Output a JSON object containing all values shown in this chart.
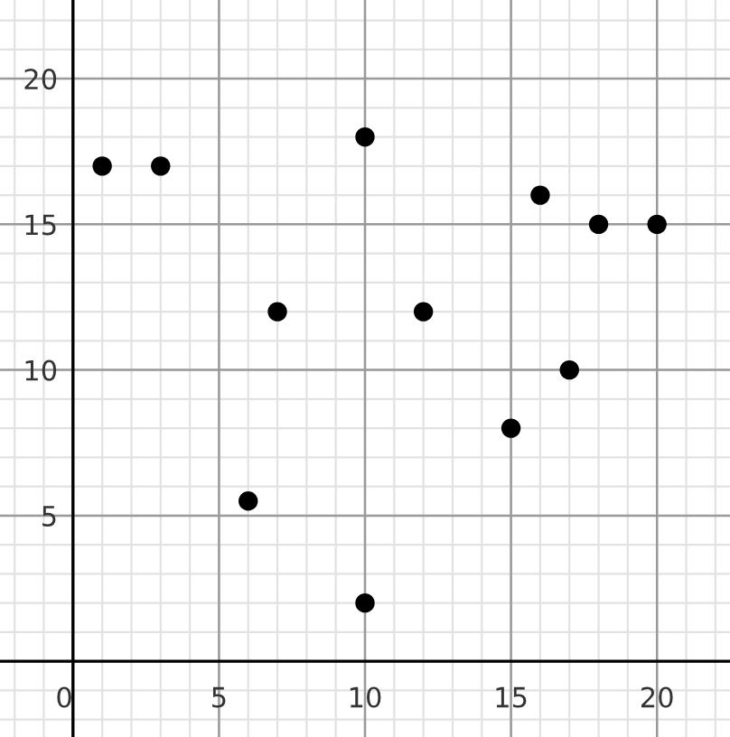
{
  "chart_data": {
    "type": "scatter",
    "x": [
      1,
      3,
      6,
      7,
      10,
      10,
      12,
      15,
      16,
      17,
      18,
      20
    ],
    "values": [
      17,
      17,
      5.5,
      12,
      18,
      2,
      12,
      8,
      16,
      10,
      15,
      15
    ],
    "color": "#000000",
    "marker": "circle",
    "xlim": [
      -2.5,
      22.5
    ],
    "ylim": [
      -2.6,
      22.7
    ],
    "xticks": [
      0,
      5,
      10,
      15,
      20
    ],
    "yticks": [
      {
        "value": 0,
        "label": null
      },
      5,
      10,
      15,
      20
    ],
    "grid": true
  }
}
